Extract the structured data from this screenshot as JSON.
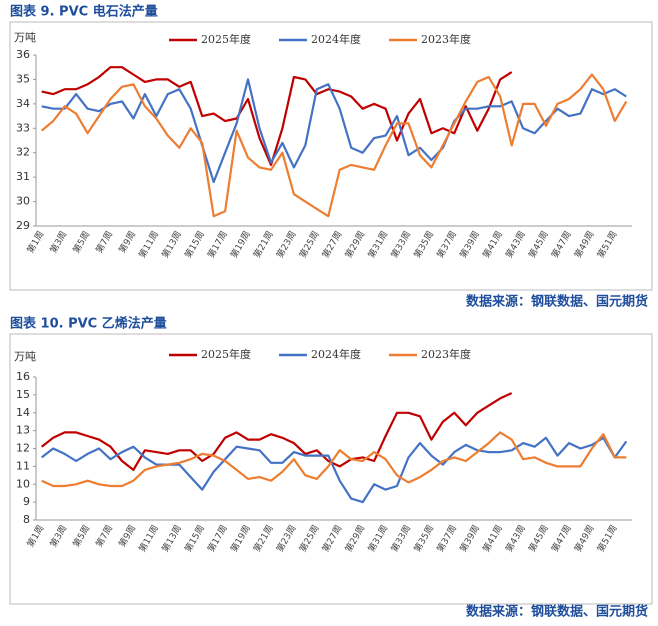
{
  "chart_data": [
    {
      "type": "line",
      "title": "图表 9.  PVC 电石法产量",
      "y_label": "万吨",
      "source": "数据来源：钢联数据、国元期货",
      "categories": [
        "第1周",
        null,
        "第3周",
        null,
        "第5周",
        null,
        "第7周",
        null,
        "第9周",
        null,
        "第11周",
        null,
        "第13周",
        null,
        "第15周",
        null,
        "第17周",
        null,
        "第19周",
        null,
        "第21周",
        null,
        "第23周",
        null,
        "第25周",
        null,
        "第27周",
        null,
        "第29周",
        null,
        "第31周",
        null,
        "第33周",
        null,
        "第35周",
        null,
        "第37周",
        null,
        "第39周",
        null,
        "第41周",
        null,
        "第43周",
        null,
        "第45周",
        null,
        "第47周",
        null,
        "第49周",
        null,
        "第51周",
        null
      ],
      "ylim": [
        29,
        36
      ],
      "yticks": [
        29,
        30,
        31,
        32,
        33,
        34,
        35,
        36
      ],
      "legend": "top",
      "series": [
        {
          "name": "2025年度",
          "color": "#c00000",
          "values": [
            34.5,
            34.4,
            34.6,
            34.6,
            34.8,
            35.1,
            35.5,
            35.5,
            35.2,
            34.9,
            35.0,
            35.0,
            34.7,
            34.9,
            33.5,
            33.6,
            33.3,
            33.4,
            34.2,
            32.6,
            31.5,
            33.0,
            35.1,
            35.0,
            34.4,
            34.6,
            34.5,
            34.3,
            33.8,
            34.0,
            33.8,
            32.5,
            33.6,
            34.2,
            32.8,
            33.0,
            32.8,
            33.9,
            32.9,
            33.8,
            35.0,
            35.3,
            null,
            null,
            null,
            null,
            null,
            null,
            null,
            null,
            null,
            null
          ]
        },
        {
          "name": "2024年度",
          "color": "#4472c4",
          "values": [
            33.9,
            33.8,
            33.8,
            34.4,
            33.8,
            33.7,
            34.0,
            34.1,
            33.4,
            34.4,
            33.5,
            34.4,
            34.6,
            33.8,
            32.3,
            30.8,
            32.0,
            33.2,
            35.0,
            33.0,
            31.6,
            32.4,
            31.4,
            32.3,
            34.6,
            34.8,
            33.8,
            32.2,
            32.0,
            32.6,
            32.7,
            33.5,
            31.9,
            32.2,
            31.7,
            32.2,
            33.3,
            33.8,
            33.8,
            33.9,
            33.9,
            34.1,
            33.0,
            32.8,
            33.3,
            33.8,
            33.5,
            33.6,
            34.6,
            34.4,
            34.6,
            34.3
          ]
        },
        {
          "name": "2023年度",
          "color": "#ed7d31",
          "values": [
            32.9,
            33.3,
            33.9,
            33.6,
            32.8,
            33.5,
            34.2,
            34.7,
            34.8,
            33.9,
            33.4,
            32.7,
            32.2,
            33.0,
            32.4,
            29.4,
            29.6,
            32.9,
            31.8,
            31.4,
            31.3,
            32.0,
            30.3,
            30.0,
            29.7,
            29.4,
            31.3,
            31.5,
            31.4,
            31.3,
            32.3,
            33.2,
            33.2,
            31.9,
            31.4,
            32.3,
            33.2,
            34.1,
            34.9,
            35.1,
            34.3,
            32.3,
            34.0,
            34.0,
            33.1,
            34.0,
            34.2,
            34.6,
            35.2,
            34.6,
            33.3,
            34.1
          ]
        }
      ]
    },
    {
      "type": "line",
      "title": "图表 10.  PVC 乙烯法产量",
      "y_label": "万吨",
      "source": "数据来源：钢联数据、国元期货",
      "categories": [
        "第1周",
        null,
        "第3周",
        null,
        "第5周",
        null,
        "第7周",
        null,
        "第9周",
        null,
        "第11周",
        null,
        "第13周",
        null,
        "第15周",
        null,
        "第17周",
        null,
        "第19周",
        null,
        "第21周",
        null,
        "第23周",
        null,
        "第25周",
        null,
        "第27周",
        null,
        "第29周",
        null,
        "第31周",
        null,
        "第33周",
        null,
        "第35周",
        null,
        "第37周",
        null,
        "第39周",
        null,
        "第41周",
        null,
        "第43周",
        null,
        "第45周",
        null,
        "第47周",
        null,
        "第49周",
        null,
        "第51周",
        null
      ],
      "ylim": [
        8,
        16
      ],
      "yticks": [
        8,
        9,
        10,
        11,
        12,
        13,
        14,
        15,
        16
      ],
      "legend": "top",
      "series": [
        {
          "name": "2025年度",
          "color": "#c00000",
          "values": [
            12.1,
            12.6,
            12.9,
            12.9,
            12.7,
            12.5,
            12.1,
            11.3,
            10.8,
            11.9,
            11.8,
            11.7,
            11.9,
            11.9,
            11.3,
            11.7,
            12.6,
            12.9,
            12.5,
            12.5,
            12.8,
            12.6,
            12.3,
            11.7,
            11.9,
            11.3,
            11.0,
            11.4,
            11.5,
            11.3,
            12.7,
            14.0,
            14.0,
            13.8,
            12.5,
            13.5,
            14.0,
            13.3,
            14.0,
            14.4,
            14.8,
            15.1,
            null,
            null,
            null,
            null,
            null,
            null,
            null,
            null,
            null,
            null
          ]
        },
        {
          "name": "2024年度",
          "color": "#4472c4",
          "values": [
            11.5,
            12.0,
            11.7,
            11.3,
            11.7,
            12.0,
            11.4,
            11.8,
            12.1,
            11.5,
            11.1,
            11.1,
            11.1,
            10.4,
            9.7,
            10.7,
            11.4,
            12.1,
            12.0,
            11.9,
            11.2,
            11.2,
            11.8,
            11.6,
            11.6,
            11.6,
            10.2,
            9.2,
            9.0,
            10.0,
            9.7,
            9.9,
            11.5,
            12.3,
            11.6,
            11.1,
            11.8,
            12.2,
            11.9,
            11.8,
            11.8,
            11.9,
            12.3,
            12.1,
            12.6,
            11.6,
            12.3,
            12.0,
            12.2,
            12.6,
            11.5,
            12.4
          ]
        },
        {
          "name": "2023年度",
          "color": "#ed7d31",
          "values": [
            10.2,
            9.9,
            9.9,
            10.0,
            10.2,
            10.0,
            9.9,
            9.9,
            10.2,
            10.8,
            11.0,
            11.1,
            11.2,
            11.4,
            11.7,
            11.6,
            11.3,
            10.8,
            10.3,
            10.4,
            10.2,
            10.7,
            11.4,
            10.5,
            10.3,
            11.0,
            11.9,
            11.4,
            11.3,
            11.8,
            11.4,
            10.5,
            10.1,
            10.4,
            10.8,
            11.3,
            11.5,
            11.3,
            11.8,
            12.3,
            12.9,
            12.5,
            11.4,
            11.5,
            11.2,
            11.0,
            11.0,
            11.0,
            12.0,
            12.8,
            11.5,
            11.5
          ]
        }
      ]
    }
  ]
}
